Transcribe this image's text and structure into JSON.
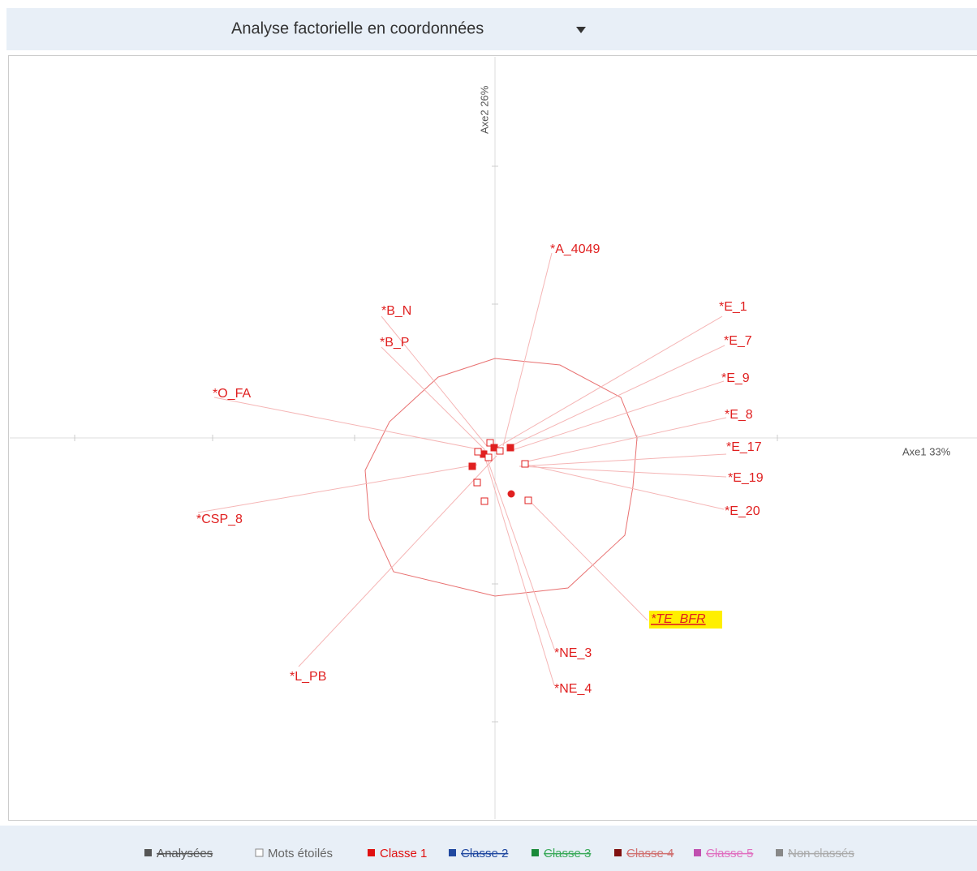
{
  "header": {
    "title": "Analyse factorielle en coordonnées"
  },
  "axes": {
    "x": "Axe1 33%",
    "y": "Axe2 26%"
  },
  "labels": [
    "*A_4049",
    "*B_N",
    "*B_P",
    "*O_FA",
    "*E_1",
    "*E_7",
    "*E_9",
    "*E_8",
    "*E_17",
    "*E_19",
    "*E_20",
    "*CSP_8",
    "*L_PB",
    "*NE_3",
    "*NE_4",
    "*TE_BFR"
  ],
  "legend": [
    "Analysées",
    "Mots étoilés",
    "Classe 1",
    "Classe 2",
    "Classe 3",
    "Classe 4",
    "Classe 5",
    "Non classés"
  ]
}
